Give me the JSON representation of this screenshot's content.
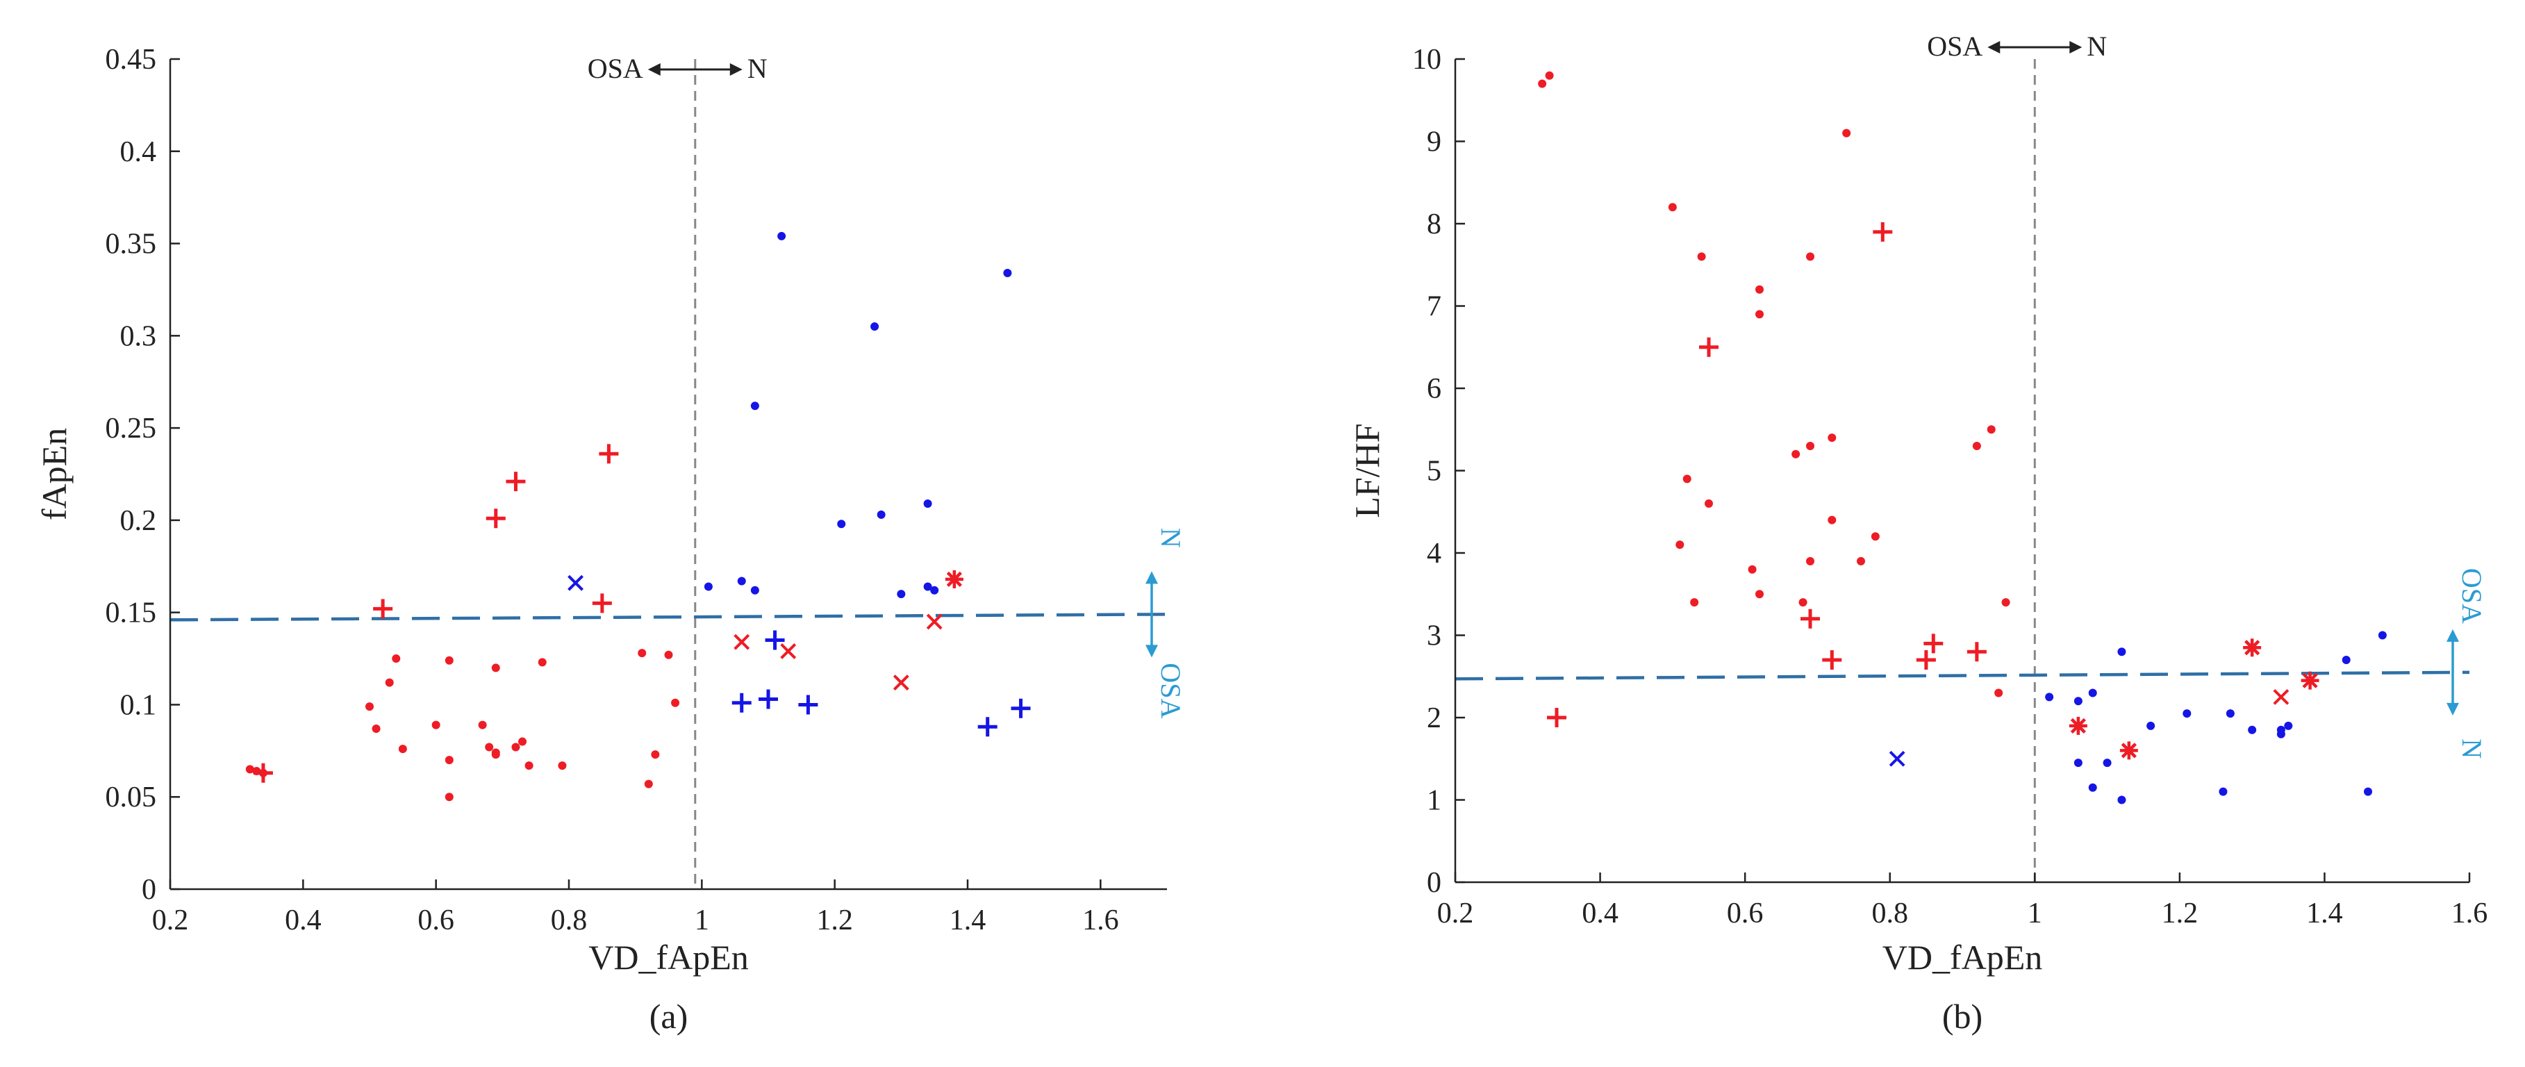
{
  "colors": {
    "osa": "#ee1c25",
    "normal": "#1515e6",
    "threshold": "#2f6fa6",
    "side_arrow": "#2b9bd3",
    "divider": "#888888"
  },
  "chart_data": [
    {
      "type": "scatter",
      "caption": "(a)",
      "xlabel": "VD_fApEn",
      "ylabel": "fApEn",
      "xlim": [
        0.2,
        1.7
      ],
      "ylim": [
        0,
        0.45
      ],
      "xticks": [
        0.2,
        0.4,
        0.6,
        0.8,
        1,
        1.2,
        1.4,
        1.6
      ],
      "xtick_labels": [
        "0.2",
        "0.4",
        "0.6",
        "0.8",
        "1",
        "1.2",
        "1.4",
        "1.6"
      ],
      "yticks": [
        0,
        0.05,
        0.1,
        0.15,
        0.2,
        0.25,
        0.3,
        0.35,
        0.4,
        0.45
      ],
      "ytick_labels": [
        "0",
        "0.05",
        "0.1",
        "0.15",
        "0.2",
        "0.25",
        "0.3",
        "0.35",
        "0.4",
        "0.45"
      ],
      "vertical_line_x": 0.99,
      "threshold_line": {
        "x": [
          0.2,
          1.7
        ],
        "y": [
          0.146,
          0.149
        ]
      },
      "top_annotation": {
        "left": "OSA",
        "right": "N"
      },
      "side_annotation": {
        "upper": "N",
        "lower": "OSA"
      },
      "series": [
        {
          "name": "OSA dot",
          "color": "#ee1c25",
          "marker": "dot",
          "points": [
            [
              0.32,
              0.065
            ],
            [
              0.33,
              0.064
            ],
            [
              0.34,
              0.063
            ],
            [
              0.5,
              0.099
            ],
            [
              0.51,
              0.087
            ],
            [
              0.53,
              0.112
            ],
            [
              0.54,
              0.125
            ],
            [
              0.55,
              0.076
            ],
            [
              0.6,
              0.089
            ],
            [
              0.62,
              0.05
            ],
            [
              0.62,
              0.07
            ],
            [
              0.62,
              0.124
            ],
            [
              0.67,
              0.089
            ],
            [
              0.68,
              0.077
            ],
            [
              0.69,
              0.074
            ],
            [
              0.69,
              0.073
            ],
            [
              0.69,
              0.12
            ],
            [
              0.72,
              0.077
            ],
            [
              0.73,
              0.08
            ],
            [
              0.74,
              0.067
            ],
            [
              0.76,
              0.123
            ],
            [
              0.79,
              0.067
            ],
            [
              0.91,
              0.128
            ],
            [
              0.92,
              0.057
            ],
            [
              0.93,
              0.073
            ],
            [
              0.95,
              0.127
            ],
            [
              0.96,
              0.101
            ]
          ]
        },
        {
          "name": "OSA plus",
          "color": "#ee1c25",
          "marker": "plus",
          "points": [
            [
              0.34,
              0.063
            ],
            [
              0.52,
              0.152
            ],
            [
              0.69,
              0.201
            ],
            [
              0.72,
              0.221
            ],
            [
              0.85,
              0.155
            ],
            [
              0.86,
              0.236
            ]
          ]
        },
        {
          "name": "OSA cross",
          "color": "#ee1c25",
          "marker": "x",
          "points": [
            [
              1.06,
              0.134
            ],
            [
              1.13,
              0.129
            ],
            [
              1.3,
              0.112
            ],
            [
              1.35,
              0.145
            ]
          ]
        },
        {
          "name": "OSA star",
          "color": "#ee1c25",
          "marker": "star",
          "points": [
            [
              1.38,
              0.168
            ]
          ]
        },
        {
          "name": "N dot",
          "color": "#1515e6",
          "marker": "dot",
          "points": [
            [
              1.01,
              0.164
            ],
            [
              1.06,
              0.167
            ],
            [
              1.08,
              0.262
            ],
            [
              1.08,
              0.162
            ],
            [
              1.12,
              0.354
            ],
            [
              1.21,
              0.198
            ],
            [
              1.26,
              0.305
            ],
            [
              1.27,
              0.203
            ],
            [
              1.3,
              0.16
            ],
            [
              1.34,
              0.209
            ],
            [
              1.34,
              0.164
            ],
            [
              1.35,
              0.162
            ],
            [
              1.46,
              0.334
            ]
          ]
        },
        {
          "name": "N plus",
          "color": "#1515e6",
          "marker": "plus",
          "points": [
            [
              1.06,
              0.101
            ],
            [
              1.1,
              0.103
            ],
            [
              1.11,
              0.135
            ],
            [
              1.16,
              0.1
            ],
            [
              1.43,
              0.088
            ],
            [
              1.48,
              0.098
            ]
          ]
        },
        {
          "name": "N cross",
          "color": "#1515e6",
          "marker": "x",
          "points": [
            [
              0.81,
              0.166
            ]
          ]
        }
      ]
    },
    {
      "type": "scatter",
      "caption": "(b)",
      "xlabel": "VD_fApEn",
      "ylabel": "LF/HF",
      "xlim": [
        0.2,
        1.6
      ],
      "ylim": [
        0,
        10
      ],
      "xticks": [
        0.2,
        0.4,
        0.6,
        0.8,
        1,
        1.2,
        1.4,
        1.6
      ],
      "xtick_labels": [
        "0.2",
        "0.4",
        "0.6",
        "0.8",
        "1",
        "1.2",
        "1.4",
        "1.6"
      ],
      "yticks": [
        0,
        1,
        2,
        3,
        4,
        5,
        6,
        7,
        8,
        9,
        10
      ],
      "ytick_labels": [
        "0",
        "1",
        "2",
        "3",
        "4",
        "5",
        "6",
        "7",
        "8",
        "9",
        "10"
      ],
      "vertical_line_x": 1.0,
      "threshold_line": {
        "x": [
          0.2,
          1.6
        ],
        "y": [
          2.47,
          2.55
        ]
      },
      "top_annotation": {
        "left": "OSA",
        "right": "N"
      },
      "side_annotation": {
        "upper": "OSA",
        "lower": "N"
      },
      "series": [
        {
          "name": "OSA dot",
          "color": "#ee1c25",
          "marker": "dot",
          "points": [
            [
              0.32,
              9.7
            ],
            [
              0.33,
              9.8
            ],
            [
              0.5,
              8.2
            ],
            [
              0.51,
              4.1
            ],
            [
              0.52,
              4.9
            ],
            [
              0.53,
              3.4
            ],
            [
              0.54,
              7.6
            ],
            [
              0.55,
              4.6
            ],
            [
              0.61,
              3.8
            ],
            [
              0.62,
              3.5
            ],
            [
              0.62,
              7.2
            ],
            [
              0.62,
              6.9
            ],
            [
              0.67,
              5.2
            ],
            [
              0.68,
              3.4
            ],
            [
              0.69,
              3.9
            ],
            [
              0.69,
              5.3
            ],
            [
              0.69,
              7.6
            ],
            [
              0.72,
              5.4
            ],
            [
              0.72,
              4.4
            ],
            [
              0.74,
              9.1
            ],
            [
              0.76,
              3.9
            ],
            [
              0.78,
              4.2
            ],
            [
              0.92,
              5.3
            ],
            [
              0.94,
              5.5
            ],
            [
              0.95,
              2.3
            ],
            [
              0.96,
              3.4
            ]
          ]
        },
        {
          "name": "OSA plus",
          "color": "#ee1c25",
          "marker": "plus",
          "points": [
            [
              0.34,
              2.0
            ],
            [
              0.55,
              6.5
            ],
            [
              0.69,
              3.2
            ],
            [
              0.72,
              2.7
            ],
            [
              0.79,
              7.9
            ],
            [
              0.85,
              2.7
            ],
            [
              0.86,
              2.9
            ],
            [
              0.92,
              2.8
            ]
          ]
        },
        {
          "name": "OSA cross",
          "color": "#ee1c25",
          "marker": "x",
          "points": [
            [
              1.34,
              2.25
            ]
          ]
        },
        {
          "name": "OSA star",
          "color": "#ee1c25",
          "marker": "star",
          "points": [
            [
              1.06,
              1.9
            ],
            [
              1.13,
              1.6
            ],
            [
              1.3,
              2.85
            ],
            [
              1.38,
              2.45
            ]
          ]
        },
        {
          "name": "N dot",
          "color": "#1515e6",
          "marker": "dot",
          "points": [
            [
              1.02,
              2.25
            ],
            [
              1.06,
              1.45
            ],
            [
              1.06,
              2.2
            ],
            [
              1.08,
              1.15
            ],
            [
              1.08,
              2.3
            ],
            [
              1.1,
              1.45
            ],
            [
              1.12,
              2.8
            ],
            [
              1.12,
              1.0
            ],
            [
              1.16,
              1.9
            ],
            [
              1.21,
              2.05
            ],
            [
              1.26,
              1.1
            ],
            [
              1.27,
              2.05
            ],
            [
              1.3,
              1.85
            ],
            [
              1.34,
              1.8
            ],
            [
              1.34,
              1.85
            ],
            [
              1.35,
              1.9
            ],
            [
              1.43,
              2.7
            ],
            [
              1.46,
              1.1
            ],
            [
              1.48,
              3.0
            ]
          ]
        },
        {
          "name": "N cross",
          "color": "#1515e6",
          "marker": "x",
          "points": [
            [
              0.81,
              1.5
            ]
          ]
        }
      ]
    }
  ]
}
